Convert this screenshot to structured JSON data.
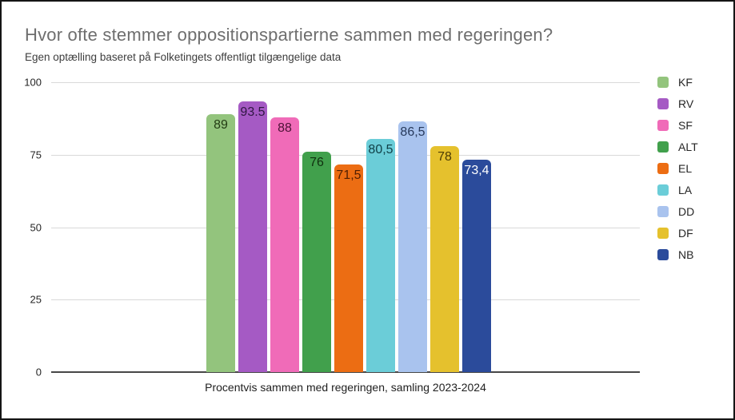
{
  "header": {
    "title": "Hvor ofte stemmer oppositionspartierne sammen med regeringen?",
    "subtitle": "Egen optælling baseret på Folketingets offentligt tilgængelige data"
  },
  "chart_data": {
    "type": "bar",
    "title": "Hvor ofte stemmer oppositionspartierne sammen med regeringen?",
    "subtitle": "Egen optælling baseret på Folketingets offentligt tilgængelige data",
    "xlabel": "Procentvis sammen med regeringen, samling 2023-2024",
    "ylabel": "",
    "ylim": [
      0,
      100
    ],
    "yticks": [
      0,
      25,
      50,
      75,
      100
    ],
    "grid": true,
    "legend_position": "right",
    "categories": [
      "KF",
      "RV",
      "SF",
      "ALT",
      "EL",
      "LA",
      "DD",
      "DF",
      "NB"
    ],
    "values": [
      89,
      93.5,
      88,
      76,
      71.5,
      80.5,
      86.5,
      78,
      73.4
    ],
    "value_labels": [
      "89",
      "93.5",
      "88",
      "76",
      "71,5",
      "80,5",
      "86,5",
      "78",
      "73,4"
    ],
    "colors": [
      "#93c47d",
      "#a55ac4",
      "#f06bb8",
      "#41a04c",
      "#ec6d13",
      "#6bcdd8",
      "#a9c3ee",
      "#e5c12d",
      "#2b4b9b"
    ],
    "label_colors": [
      "#233c14",
      "#2f1742",
      "#4c1236",
      "#10300f",
      "#511f03",
      "#104047",
      "#283a5c",
      "#4c3c05",
      "#ffffff"
    ],
    "gridline_color": "#d9d9d9",
    "baseline_color": "#474747",
    "title_color": "#6e6e6e",
    "subtitle_color": "#3d3d3d"
  }
}
